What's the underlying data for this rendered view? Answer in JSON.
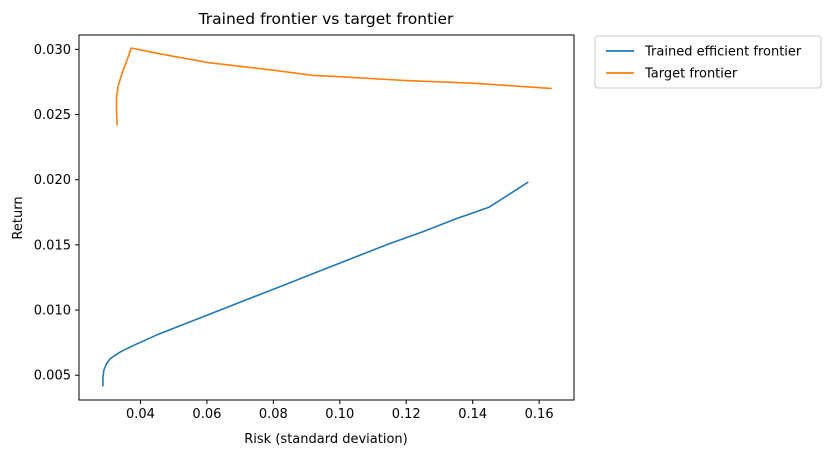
{
  "chart_data": {
    "type": "line",
    "title": "Trained frontier vs target frontier",
    "xlabel": "Risk (standard deviation)",
    "ylabel": "Return",
    "xlim": [
      0.0215,
      0.1705
    ],
    "ylim": [
      0.0031,
      0.0311
    ],
    "xticks": [
      0.04,
      0.06,
      0.08,
      0.1,
      0.12,
      0.14,
      0.16
    ],
    "xtick_labels": [
      "0.04",
      "0.06",
      "0.08",
      "0.10",
      "0.12",
      "0.14",
      "0.16"
    ],
    "yticks": [
      0.005,
      0.01,
      0.015,
      0.02,
      0.025,
      0.03
    ],
    "ytick_labels": [
      "0.005",
      "0.010",
      "0.015",
      "0.020",
      "0.025",
      "0.030"
    ],
    "grid": false,
    "legend_position": "outside-top-right",
    "series": [
      {
        "name": "Trained efficient frontier",
        "color": "#1f77b4",
        "x": [
          0.0287,
          0.0287,
          0.029,
          0.0298,
          0.031,
          0.034,
          0.038,
          0.045,
          0.055,
          0.065,
          0.075,
          0.085,
          0.095,
          0.105,
          0.115,
          0.125,
          0.135,
          0.145,
          0.1566
        ],
        "y": [
          0.0042,
          0.0048,
          0.0054,
          0.0059,
          0.0063,
          0.0068,
          0.0073,
          0.0081,
          0.0091,
          0.0101,
          0.0111,
          0.0121,
          0.0131,
          0.0141,
          0.0151,
          0.016,
          0.017,
          0.0179,
          0.0198
        ]
      },
      {
        "name": "Target frontier",
        "color": "#ff7f0e",
        "x": [
          0.033,
          0.0328,
          0.0328,
          0.0333,
          0.0345,
          0.036,
          0.0372,
          0.045,
          0.06,
          0.08,
          0.092,
          0.1,
          0.12,
          0.14,
          0.1636
        ],
        "y": [
          0.0242,
          0.0252,
          0.0263,
          0.0272,
          0.0282,
          0.0292,
          0.0301,
          0.0297,
          0.029,
          0.0284,
          0.028,
          0.0279,
          0.0276,
          0.0274,
          0.027
        ]
      }
    ]
  }
}
